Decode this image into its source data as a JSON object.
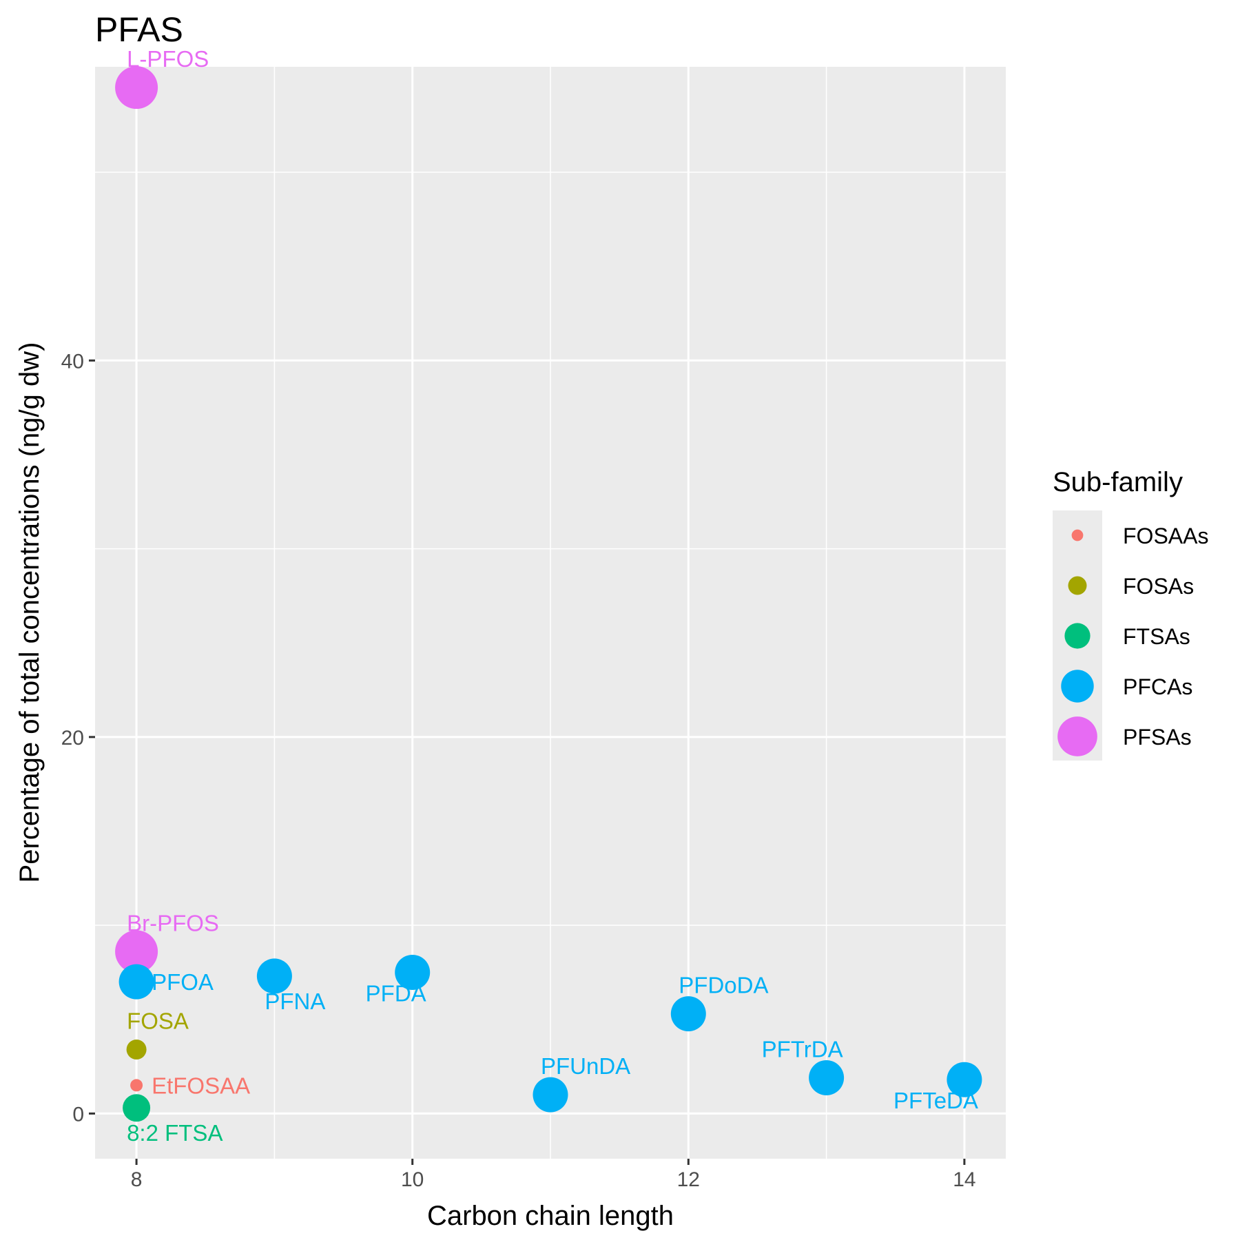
{
  "chart_data": {
    "type": "scatter",
    "title": "PFAS",
    "xlabel": "Carbon chain length",
    "ylabel": "Percentage of total concentrations (ng/g dw)",
    "xlim": [
      7.7,
      14.3
    ],
    "ylim": [
      -2.4,
      55.6
    ],
    "x_ticks": [
      8,
      10,
      12,
      14
    ],
    "y_ticks": [
      0,
      20,
      40
    ],
    "grid": true,
    "legend": {
      "title": "Sub-family",
      "placement": "right",
      "entries": [
        {
          "label": "FOSAAs",
          "color": "#F8766D",
          "size": 1
        },
        {
          "label": "FOSAs",
          "color": "#A3A500",
          "size": 2
        },
        {
          "label": "FTSAs",
          "color": "#00BF7D",
          "size": 3
        },
        {
          "label": "PFCAs",
          "color": "#00B0F6",
          "size": 4
        },
        {
          "label": "PFSAs",
          "color": "#E76BF3",
          "size": 5
        }
      ]
    },
    "points": [
      {
        "label": "L-PFOS",
        "x": 8,
        "y": 54.5,
        "group": "PFSAs",
        "label_pos": "above-right"
      },
      {
        "label": "Br-PFOS",
        "x": 8,
        "y": 8.6,
        "group": "PFSAs",
        "label_pos": "above-right"
      },
      {
        "label": "PFOA",
        "x": 8,
        "y": 7.0,
        "group": "PFCAs",
        "label_pos": "right"
      },
      {
        "label": "PFNA",
        "x": 9,
        "y": 7.3,
        "group": "PFCAs",
        "label_pos": "below-right"
      },
      {
        "label": "PFDA",
        "x": 10,
        "y": 7.5,
        "group": "PFCAs",
        "label_pos": "below-left"
      },
      {
        "label": "PFUnDA",
        "x": 11,
        "y": 1.0,
        "group": "PFCAs",
        "label_pos": "above-right"
      },
      {
        "label": "PFDoDA",
        "x": 12,
        "y": 5.3,
        "group": "PFCAs",
        "label_pos": "above-right"
      },
      {
        "label": "PFTrDA",
        "x": 13,
        "y": 1.9,
        "group": "PFCAs",
        "label_pos": "above-left"
      },
      {
        "label": "PFTeDA",
        "x": 14,
        "y": 1.8,
        "group": "PFCAs",
        "label_pos": "below-left"
      },
      {
        "label": "FOSA",
        "x": 8,
        "y": 3.4,
        "group": "FOSAs",
        "label_pos": "above-right"
      },
      {
        "label": "EtFOSAA",
        "x": 8,
        "y": 1.5,
        "group": "FOSAAs",
        "label_pos": "right"
      },
      {
        "label": "8:2 FTSA",
        "x": 8,
        "y": 0.3,
        "group": "FTSAs",
        "label_pos": "below-right"
      }
    ]
  }
}
